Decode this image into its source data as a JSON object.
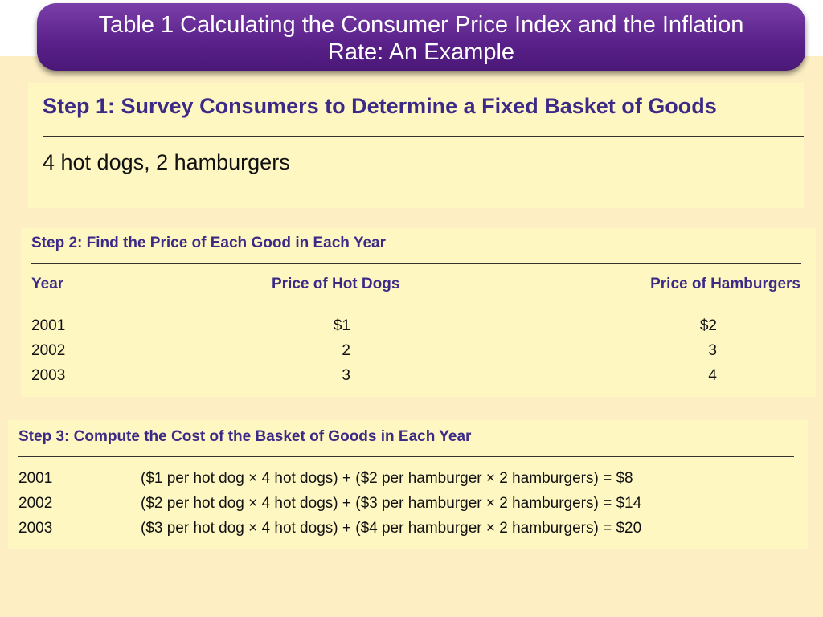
{
  "slide": {
    "title_line1": "Table 1 Calculating the Consumer Price Index and the Inflation",
    "title_line2": "Rate: An Example"
  },
  "step1": {
    "heading": "Step 1: Survey Consumers to Determine a Fixed Basket of Goods",
    "basket": "4 hot dogs, 2 hamburgers"
  },
  "step2": {
    "heading": "Step 2: Find the Price of Each Good in Each Year",
    "columns": [
      "Year",
      "Price of Hot Dogs",
      "Price of Hamburgers"
    ],
    "rows": [
      [
        "2001",
        "$1",
        "$2"
      ],
      [
        "2002",
        "2",
        "3"
      ],
      [
        "2003",
        "3",
        "4"
      ]
    ]
  },
  "step3": {
    "heading": "Step 3: Compute the Cost of the Basket of Goods in Each Year",
    "rows": [
      {
        "year": "2001",
        "formula": "($1 per hot dog × 4 hot dogs) + ($2 per hamburger × 2 hamburgers) = $8"
      },
      {
        "year": "2002",
        "formula": "($2 per hot dog × 4 hot dogs) + ($3 per hamburger × 2 hamburgers) = $14"
      },
      {
        "year": "2003",
        "formula": "($3 per hot dog × 4 hot dogs) + ($4 per hamburger × 2 hamburgers) = $20"
      }
    ]
  },
  "colors": {
    "title_bg": "#5a2089",
    "heading_text": "#3b2a86",
    "panel_bg": "#fff7c2",
    "page_bg": "#fdeec4"
  }
}
